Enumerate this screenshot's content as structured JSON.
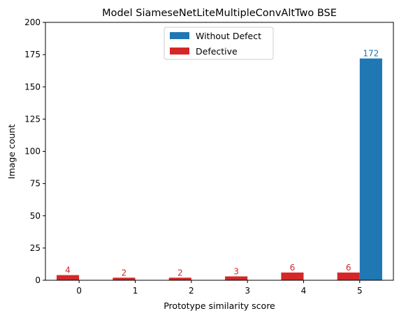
{
  "chart_data": {
    "type": "bar",
    "title": "Model SiameseNetLiteMultipleConvAltTwo BSE",
    "xlabel": "Prototype similarity score",
    "ylabel": "Image count",
    "categories": [
      "0",
      "1",
      "2",
      "3",
      "4",
      "5"
    ],
    "yticks": [
      "0",
      "25",
      "50",
      "75",
      "100",
      "125",
      "150",
      "175",
      "200"
    ],
    "ylim": [
      0,
      200
    ],
    "grid": false,
    "legend_position": "upper-center",
    "series": [
      {
        "name": "Without Defect",
        "color": "#1f77b4",
        "values": [
          0,
          0,
          0,
          0,
          0,
          172
        ],
        "labels": [
          "",
          "",
          "",
          "",
          "",
          "172"
        ]
      },
      {
        "name": "Defective",
        "color": "#d62728",
        "values": [
          4,
          2,
          2,
          3,
          6,
          6
        ],
        "labels": [
          "4",
          "2",
          "2",
          "3",
          "6",
          "6"
        ]
      }
    ]
  }
}
